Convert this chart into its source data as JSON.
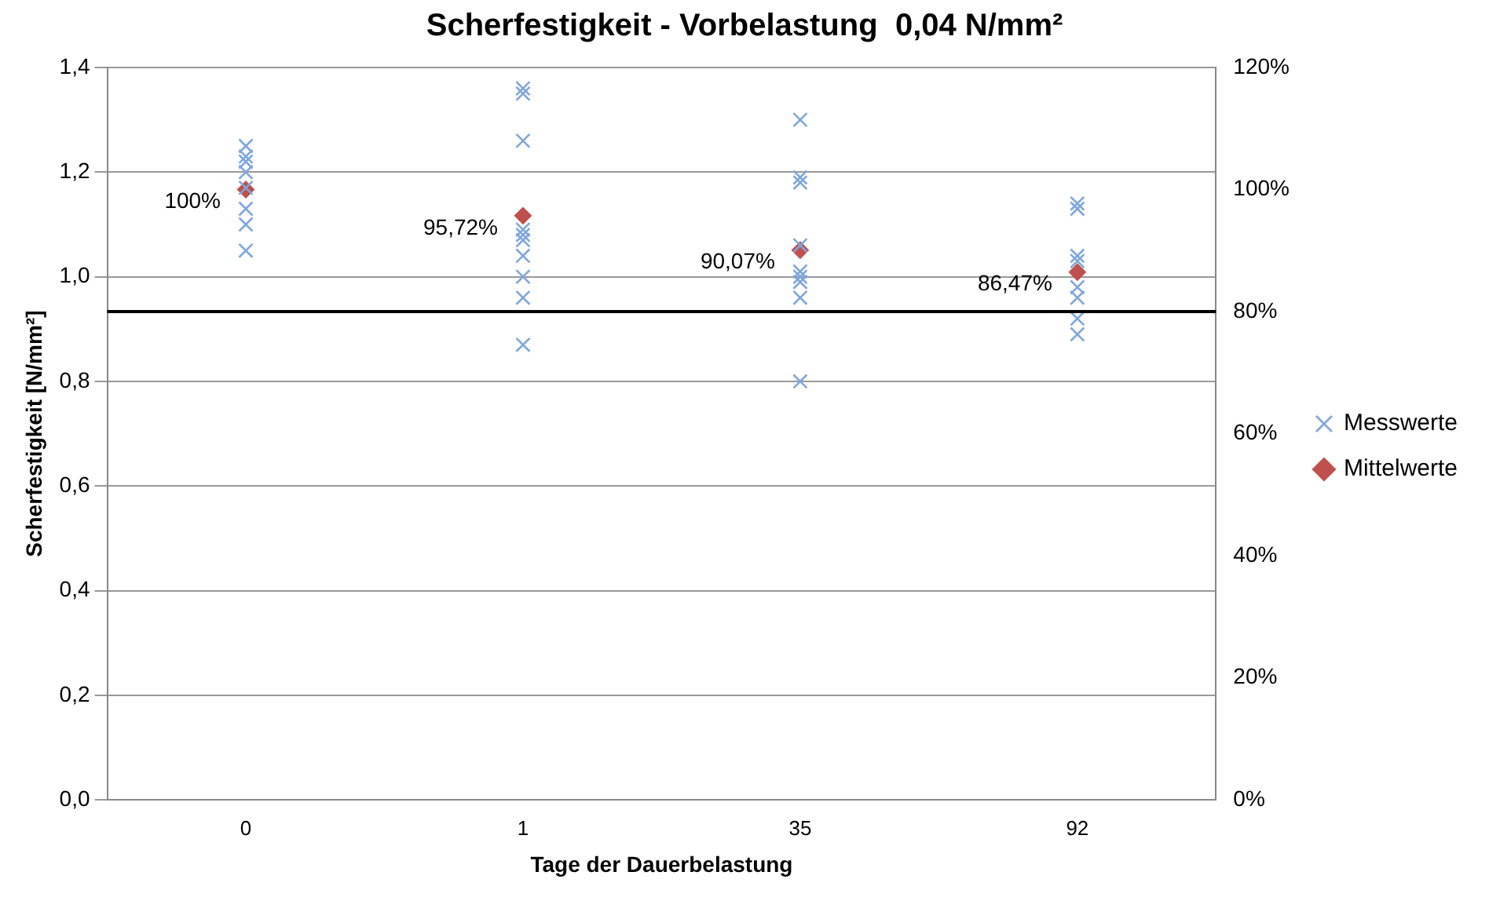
{
  "chart_data": {
    "type": "scatter",
    "title": "Scherfestigkeit - Vorbelastung  0,04 N/mm²",
    "xlabel": "Tage der Dauerbelastung",
    "ylabel": "Scherfestigkeit [N/mm²]",
    "categories": [
      "0",
      "1",
      "35",
      "92"
    ],
    "series": [
      {
        "name": "Messwerte",
        "marker": "cross",
        "color": "#7fa6dc",
        "x": [
          "0",
          "0",
          "0",
          "0",
          "0",
          "0",
          "0",
          "0",
          "1",
          "1",
          "1",
          "1",
          "1",
          "1",
          "1",
          "1",
          "1",
          "1",
          "35",
          "35",
          "35",
          "35",
          "35",
          "35",
          "35",
          "35",
          "35",
          "92",
          "92",
          "92",
          "92",
          "92",
          "92",
          "92",
          "92"
        ],
        "values": [
          1.25,
          1.23,
          1.22,
          1.2,
          1.17,
          1.13,
          1.1,
          1.05,
          1.36,
          1.35,
          1.26,
          1.09,
          1.08,
          1.07,
          1.04,
          1.0,
          0.96,
          0.87,
          1.3,
          1.19,
          1.18,
          1.06,
          1.01,
          1.0,
          0.99,
          0.96,
          0.8,
          1.14,
          1.13,
          1.04,
          1.03,
          0.98,
          0.96,
          0.92,
          0.89
        ]
      },
      {
        "name": "Mittelwerte",
        "axis": "y2",
        "marker": "diamond",
        "color": "#c0504d",
        "values": [
          100,
          95.72,
          90.07,
          86.47
        ],
        "value_labels": [
          "100%",
          "95,72%",
          "90,07%",
          "86,47%"
        ]
      }
    ],
    "ylim": [
      0,
      1.4
    ],
    "yticks": [
      {
        "value": 0,
        "label": "0,0"
      },
      {
        "value": 0.2,
        "label": "0,2"
      },
      {
        "value": 0.4,
        "label": "0,4"
      },
      {
        "value": 0.6,
        "label": "0,6"
      },
      {
        "value": 0.8,
        "label": "0,8"
      },
      {
        "value": 1.0,
        "label": "1,0"
      },
      {
        "value": 1.2,
        "label": "1,2"
      },
      {
        "value": 1.4,
        "label": "1,4"
      }
    ],
    "y2lim": [
      0,
      120
    ],
    "y2ticks": [
      {
        "value": 0,
        "label": "0%"
      },
      {
        "value": 20,
        "label": "20%"
      },
      {
        "value": 40,
        "label": "40%"
      },
      {
        "value": 60,
        "label": "60%"
      },
      {
        "value": 80,
        "label": "80%"
      },
      {
        "value": 100,
        "label": "100%"
      },
      {
        "value": 120,
        "label": "120%"
      }
    ],
    "ref_lines": [
      {
        "axis": "y2",
        "value": 80,
        "color": "#000000"
      }
    ],
    "grid": "y",
    "legend": "right"
  }
}
